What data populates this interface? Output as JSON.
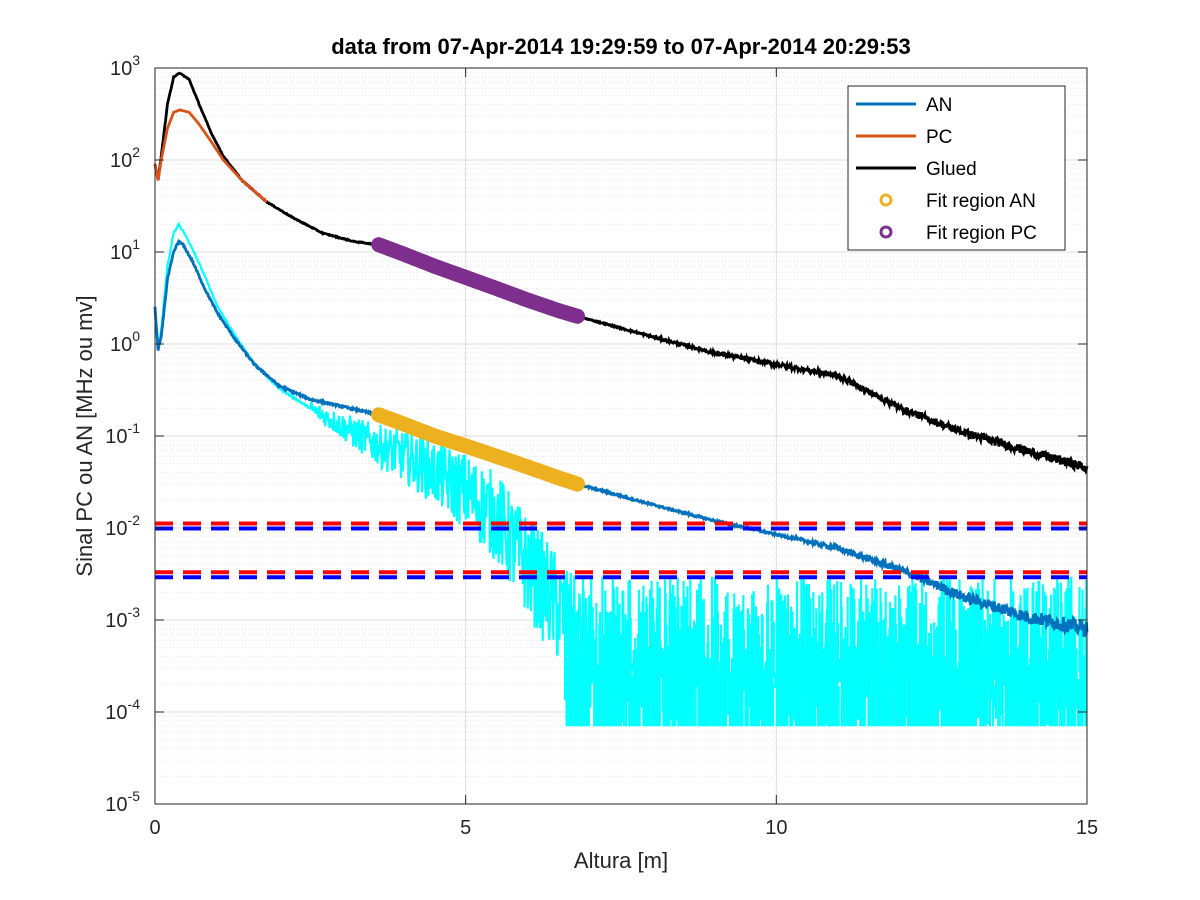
{
  "chart_data": {
    "type": "line",
    "title": "data from 07-Apr-2014 19:29:59 to 07-Apr-2014 20:29:53",
    "xlabel": "Altura [m]",
    "ylabel": "Sinal PC ou AN [MHz ou mv]",
    "xlim": [
      0,
      15
    ],
    "ylim": [
      1e-05,
      1000
    ],
    "yscale": "log",
    "grid": true,
    "minor_grid": true,
    "legend_position": "top-right",
    "x_ticks": [
      0,
      5,
      10,
      15
    ],
    "y_ticks": [
      {
        "value": 1e-05,
        "base": "10",
        "exp": "-5"
      },
      {
        "value": 0.0001,
        "base": "10",
        "exp": "-4"
      },
      {
        "value": 0.001,
        "base": "10",
        "exp": "-3"
      },
      {
        "value": 0.01,
        "base": "10",
        "exp": "-2"
      },
      {
        "value": 0.1,
        "base": "10",
        "exp": "-1"
      },
      {
        "value": 1,
        "base": "10",
        "exp": "0"
      },
      {
        "value": 10,
        "base": "10",
        "exp": "1"
      },
      {
        "value": 100,
        "base": "10",
        "exp": "2"
      },
      {
        "value": 1000,
        "base": "10",
        "exp": "3"
      }
    ],
    "series": [
      {
        "name": "AN",
        "color": "#0072BD",
        "kind": "line",
        "x": [
          0,
          0.05,
          0.1,
          0.2,
          0.3,
          0.38,
          0.45,
          0.6,
          0.8,
          1.0,
          1.3,
          1.6,
          2.0,
          2.5,
          3.0,
          3.6,
          4.5,
          5.5,
          6.8,
          8.0,
          9.0,
          10.0,
          11.0,
          12.0,
          13.0,
          14.0,
          15.0
        ],
        "y": [
          2.5,
          0.85,
          1.2,
          5.0,
          10.0,
          13.0,
          12.0,
          8.0,
          4.0,
          2.2,
          1.1,
          0.6,
          0.35,
          0.25,
          0.21,
          0.17,
          0.1,
          0.06,
          0.03,
          0.018,
          0.012,
          0.0085,
          0.006,
          0.0035,
          0.0018,
          0.0011,
          0.0008
        ]
      },
      {
        "name": "PC",
        "color": "#D95319",
        "kind": "line",
        "x": [
          0,
          0.05,
          0.1,
          0.2,
          0.3,
          0.4,
          0.55,
          0.7,
          0.9,
          1.1,
          1.4,
          1.8
        ],
        "y": [
          90,
          60,
          100,
          220,
          330,
          350,
          330,
          250,
          160,
          100,
          60,
          35
        ]
      },
      {
        "name": "Glued",
        "color": "#000000",
        "kind": "line",
        "x": [
          0,
          0.05,
          0.1,
          0.2,
          0.3,
          0.4,
          0.55,
          0.7,
          0.9,
          1.1,
          1.4,
          1.8,
          2.2,
          2.7,
          3.2,
          3.6,
          4.5,
          5.5,
          6.8,
          8.0,
          9.0,
          10.0,
          11.0,
          12.0,
          13.0,
          14.0,
          15.0
        ],
        "y": [
          90,
          60,
          110,
          400,
          800,
          880,
          750,
          420,
          200,
          110,
          60,
          35,
          24,
          16,
          13,
          12,
          7,
          4,
          2,
          1.2,
          0.8,
          0.6,
          0.45,
          0.2,
          0.11,
          0.07,
          0.045
        ]
      },
      {
        "name": "Fit region AN",
        "color": "#EDB120",
        "kind": "markers",
        "x": [
          3.6,
          4.0,
          4.5,
          5.0,
          5.5,
          6.0,
          6.5,
          6.8
        ],
        "y": [
          0.17,
          0.135,
          0.1,
          0.078,
          0.06,
          0.046,
          0.035,
          0.03
        ]
      },
      {
        "name": "Fit region PC",
        "color": "#7E2F8E",
        "kind": "markers",
        "x": [
          3.6,
          4.0,
          4.5,
          5.0,
          5.5,
          6.0,
          6.5,
          6.8
        ],
        "y": [
          12,
          9.5,
          7,
          5.3,
          4.0,
          3.0,
          2.3,
          2.0
        ]
      },
      {
        "name": "",
        "color": "#00FFFF",
        "kind": "line",
        "x": [
          0,
          0.05,
          0.1,
          0.2,
          0.3,
          0.38,
          0.45,
          0.6,
          0.8,
          1.0,
          1.3,
          1.6,
          2.0,
          2.5,
          3.0,
          3.5,
          4.0,
          4.5,
          5.0,
          5.5,
          5.8,
          6.0,
          6.3,
          6.6,
          7.0
        ],
        "y": [
          2.5,
          0.9,
          1.4,
          7.0,
          16.0,
          20.0,
          17.0,
          11.0,
          5.5,
          2.6,
          1.2,
          0.6,
          0.33,
          0.2,
          0.13,
          0.085,
          0.06,
          0.04,
          0.025,
          0.013,
          0.006,
          0.004,
          0.002,
          0.001,
          0.0005
        ]
      }
    ],
    "noise_floor": {
      "color": "#00FFFF",
      "x_from": 6.6,
      "x_to": 15.0,
      "low": 7e-05,
      "high": 0.003
    },
    "threshold_lines": [
      {
        "y": 0.0105,
        "colors": [
          "#FF0000",
          "#0000FF"
        ]
      },
      {
        "y": 0.0031,
        "colors": [
          "#FF0000",
          "#0000FF"
        ]
      }
    ]
  }
}
